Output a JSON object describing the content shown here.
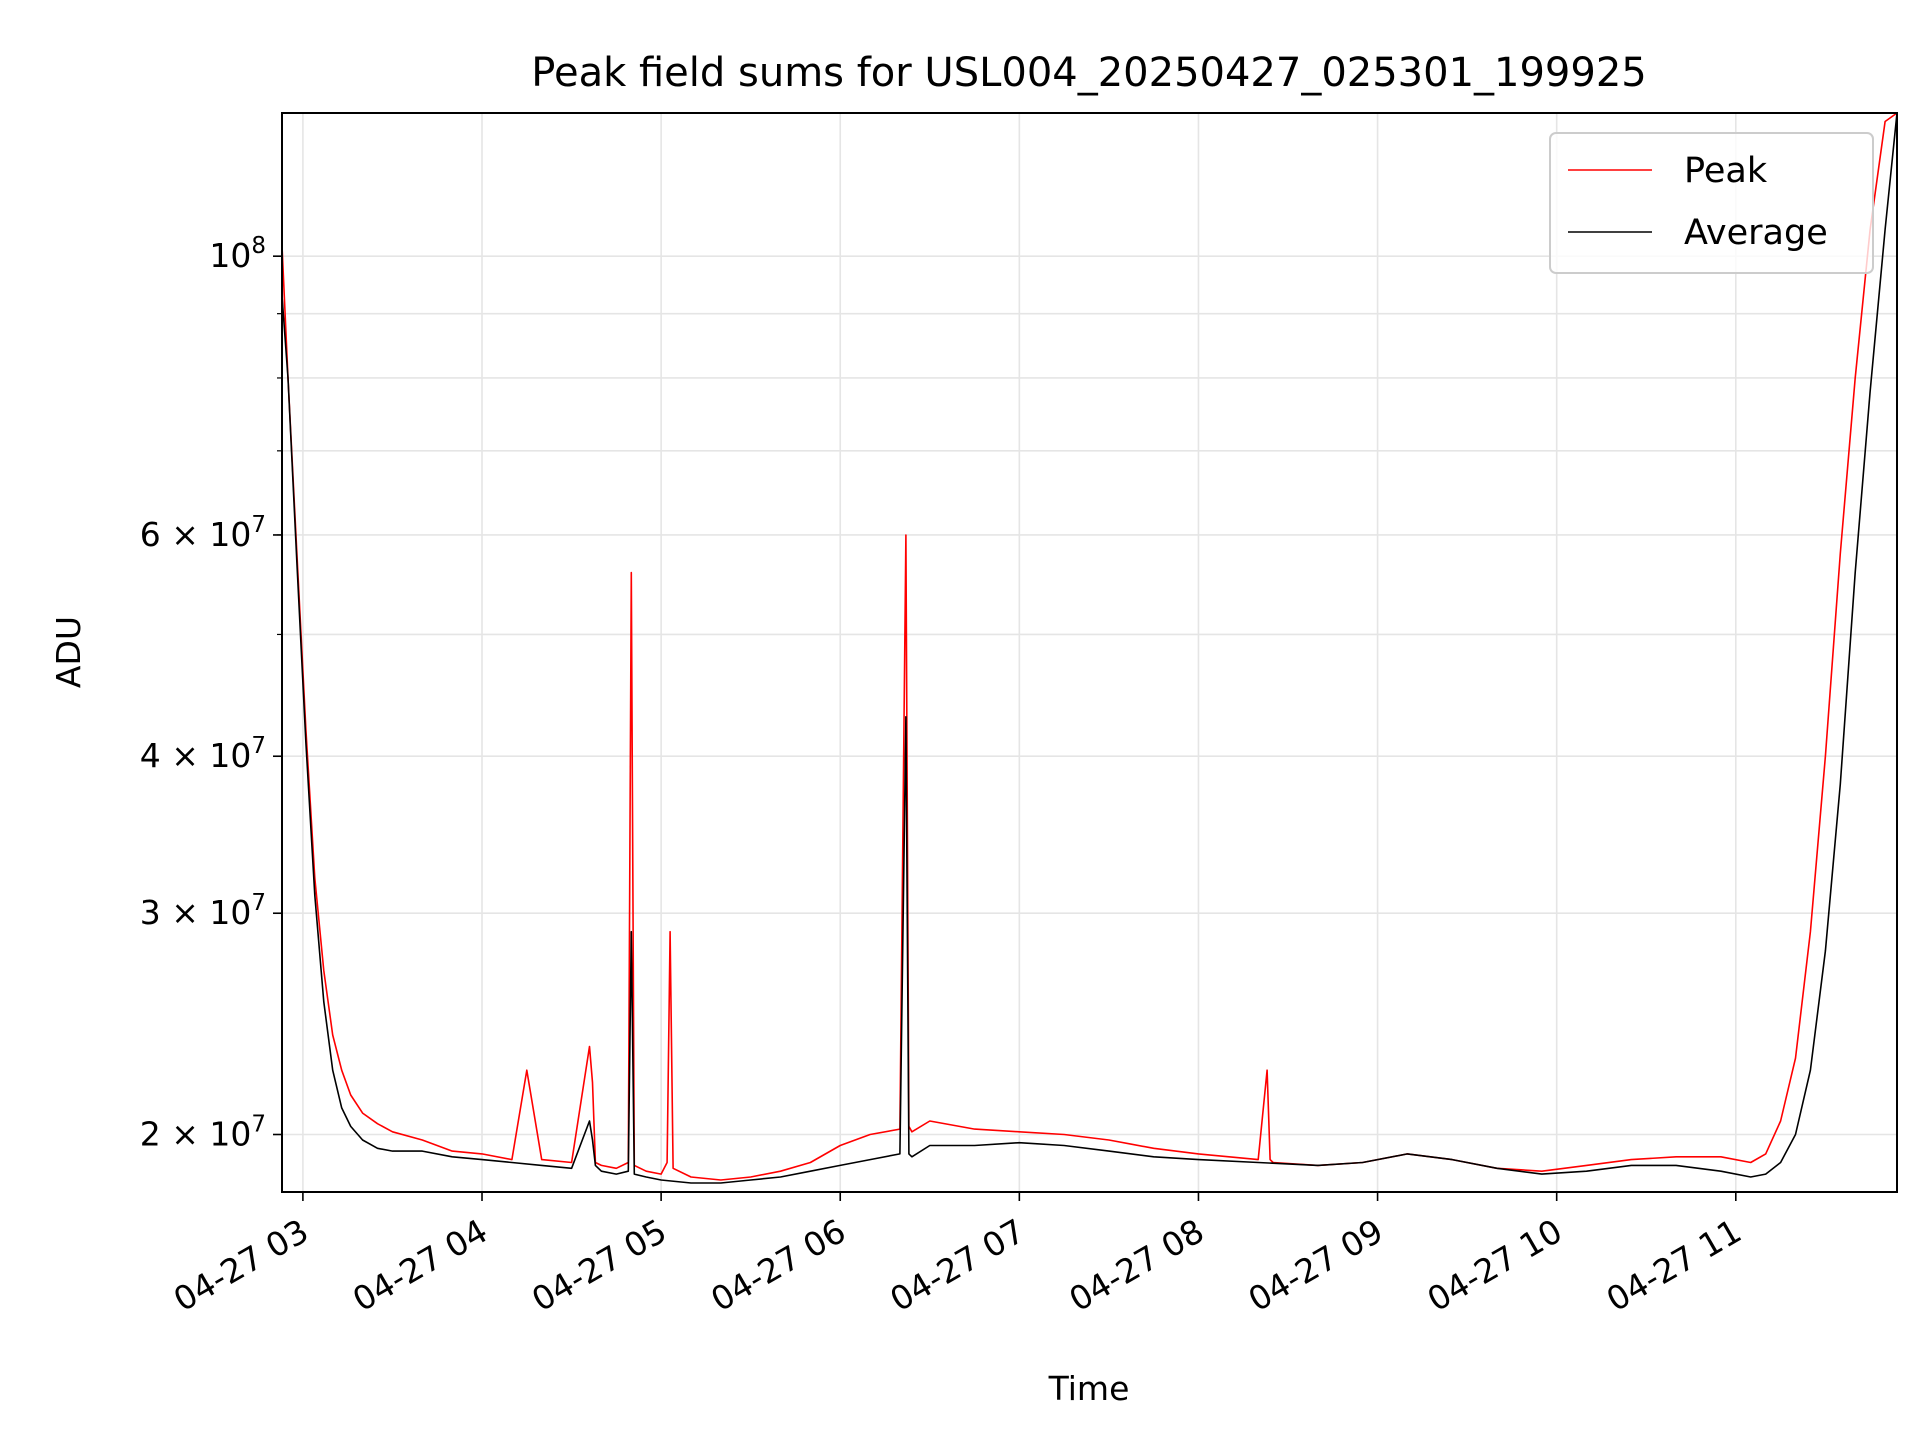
{
  "chart_data": {
    "type": "line",
    "title": "Peak field sums for USL004_20250427_025301_199925",
    "xlabel": "Time",
    "ylabel": "ADU",
    "yscale": "log",
    "ylim": [
      18000000,
      130000000
    ],
    "xlim": [
      "2025-04-27 02:53",
      "2025-04-27 11:54"
    ],
    "grid": true,
    "legend": {
      "placement": "top-right",
      "entries": [
        "Peak",
        "Average"
      ]
    },
    "x_ticks": [
      "04-27 03",
      "04-27 04",
      "04-27 05",
      "04-27 06",
      "04-27 07",
      "04-27 08",
      "04-27 09",
      "04-27 10",
      "04-27 11"
    ],
    "y_ticks": [
      {
        "value": 20000000,
        "base": "2 × 10",
        "exp": "7"
      },
      {
        "value": 30000000,
        "base": "3 × 10",
        "exp": "7"
      },
      {
        "value": 40000000,
        "base": "4 × 10",
        "exp": "7"
      },
      {
        "value": 60000000,
        "base": "6 × 10",
        "exp": "7"
      },
      {
        "value": 100000000,
        "base": "10",
        "exp": "8"
      }
    ],
    "series": [
      {
        "name": "Peak",
        "color": "#ff0000",
        "x": [
          "2025-04-27 02:53",
          "2025-04-27 02:55",
          "2025-04-27 02:58",
          "2025-04-27 03:01",
          "2025-04-27 03:04",
          "2025-04-27 03:07",
          "2025-04-27 03:10",
          "2025-04-27 03:13",
          "2025-04-27 03:16",
          "2025-04-27 03:20",
          "2025-04-27 03:25",
          "2025-04-27 03:30",
          "2025-04-27 03:40",
          "2025-04-27 03:50",
          "2025-04-27 04:00",
          "2025-04-27 04:10",
          "2025-04-27 04:15",
          "2025-04-27 04:20",
          "2025-04-27 04:30",
          "2025-04-27 04:36",
          "2025-04-27 04:37",
          "2025-04-27 04:38",
          "2025-04-27 04:40",
          "2025-04-27 04:45",
          "2025-04-27 04:49",
          "2025-04-27 04:50",
          "2025-04-27 04:51",
          "2025-04-27 04:55",
          "2025-04-27 05:00",
          "2025-04-27 05:02",
          "2025-04-27 05:03",
          "2025-04-27 05:04",
          "2025-04-27 05:10",
          "2025-04-27 05:20",
          "2025-04-27 05:30",
          "2025-04-27 05:40",
          "2025-04-27 05:50",
          "2025-04-27 06:00",
          "2025-04-27 06:10",
          "2025-04-27 06:20",
          "2025-04-27 06:22",
          "2025-04-27 06:23",
          "2025-04-27 06:24",
          "2025-04-27 06:30",
          "2025-04-27 06:45",
          "2025-04-27 07:00",
          "2025-04-27 07:15",
          "2025-04-27 07:30",
          "2025-04-27 07:45",
          "2025-04-27 08:00",
          "2025-04-27 08:20",
          "2025-04-27 08:23",
          "2025-04-27 08:24",
          "2025-04-27 08:25",
          "2025-04-27 08:40",
          "2025-04-27 08:55",
          "2025-04-27 09:10",
          "2025-04-27 09:25",
          "2025-04-27 09:40",
          "2025-04-27 09:55",
          "2025-04-27 10:10",
          "2025-04-27 10:25",
          "2025-04-27 10:40",
          "2025-04-27 10:55",
          "2025-04-27 11:05",
          "2025-04-27 11:10",
          "2025-04-27 11:15",
          "2025-04-27 11:20",
          "2025-04-27 11:25",
          "2025-04-27 11:30",
          "2025-04-27 11:35",
          "2025-04-27 11:40",
          "2025-04-27 11:45",
          "2025-04-27 11:50",
          "2025-04-27 11:54"
        ],
        "values": [
          102000000,
          80000000,
          58000000,
          42000000,
          32000000,
          27000000,
          24000000,
          22500000,
          21500000,
          20800000,
          20400000,
          20100000,
          19800000,
          19400000,
          19300000,
          19100000,
          22500000,
          19100000,
          19000000,
          23500000,
          22000000,
          19000000,
          18900000,
          18800000,
          19000000,
          56000000,
          18900000,
          18700000,
          18600000,
          19000000,
          29000000,
          18800000,
          18500000,
          18400000,
          18500000,
          18700000,
          19000000,
          19600000,
          20000000,
          20200000,
          60000000,
          20300000,
          20100000,
          20500000,
          20200000,
          20100000,
          20000000,
          19800000,
          19500000,
          19300000,
          19100000,
          22500000,
          19100000,
          19000000,
          18900000,
          19000000,
          19300000,
          19100000,
          18800000,
          18700000,
          18900000,
          19100000,
          19200000,
          19200000,
          19000000,
          19300000,
          20500000,
          23000000,
          29000000,
          40000000,
          58000000,
          80000000,
          105000000,
          128000000,
          130000000
        ]
      },
      {
        "name": "Average",
        "color": "#000000",
        "x": [
          "2025-04-27 02:53",
          "2025-04-27 02:55",
          "2025-04-27 02:58",
          "2025-04-27 03:01",
          "2025-04-27 03:04",
          "2025-04-27 03:07",
          "2025-04-27 03:10",
          "2025-04-27 03:13",
          "2025-04-27 03:16",
          "2025-04-27 03:20",
          "2025-04-27 03:25",
          "2025-04-27 03:30",
          "2025-04-27 03:40",
          "2025-04-27 03:50",
          "2025-04-27 04:00",
          "2025-04-27 04:10",
          "2025-04-27 04:20",
          "2025-04-27 04:30",
          "2025-04-27 04:36",
          "2025-04-27 04:37",
          "2025-04-27 04:38",
          "2025-04-27 04:40",
          "2025-04-27 04:45",
          "2025-04-27 04:49",
          "2025-04-27 04:50",
          "2025-04-27 04:51",
          "2025-04-27 04:55",
          "2025-04-27 05:00",
          "2025-04-27 05:10",
          "2025-04-27 05:20",
          "2025-04-27 05:30",
          "2025-04-27 05:40",
          "2025-04-27 05:50",
          "2025-04-27 06:00",
          "2025-04-27 06:10",
          "2025-04-27 06:20",
          "2025-04-27 06:22",
          "2025-04-27 06:23",
          "2025-04-27 06:24",
          "2025-04-27 06:30",
          "2025-04-27 06:45",
          "2025-04-27 07:00",
          "2025-04-27 07:15",
          "2025-04-27 07:30",
          "2025-04-27 07:45",
          "2025-04-27 08:00",
          "2025-04-27 08:20",
          "2025-04-27 08:40",
          "2025-04-27 08:55",
          "2025-04-27 09:10",
          "2025-04-27 09:25",
          "2025-04-27 09:40",
          "2025-04-27 09:55",
          "2025-04-27 10:10",
          "2025-04-27 10:25",
          "2025-04-27 10:40",
          "2025-04-27 10:55",
          "2025-04-27 11:05",
          "2025-04-27 11:10",
          "2025-04-27 11:15",
          "2025-04-27 11:20",
          "2025-04-27 11:25",
          "2025-04-27 11:30",
          "2025-04-27 11:35",
          "2025-04-27 11:40",
          "2025-04-27 11:45",
          "2025-04-27 11:50",
          "2025-04-27 11:54"
        ],
        "values": [
          93000000,
          80000000,
          57000000,
          41000000,
          31000000,
          25500000,
          22500000,
          21000000,
          20300000,
          19800000,
          19500000,
          19400000,
          19400000,
          19200000,
          19100000,
          19000000,
          18900000,
          18800000,
          20500000,
          19800000,
          18900000,
          18700000,
          18600000,
          18700000,
          29000000,
          18600000,
          18500000,
          18400000,
          18300000,
          18300000,
          18400000,
          18500000,
          18700000,
          18900000,
          19100000,
          19300000,
          43000000,
          19300000,
          19200000,
          19600000,
          19600000,
          19700000,
          19600000,
          19400000,
          19200000,
          19100000,
          19000000,
          18900000,
          19000000,
          19300000,
          19100000,
          18800000,
          18600000,
          18700000,
          18900000,
          18900000,
          18700000,
          18500000,
          18600000,
          19000000,
          20000000,
          22500000,
          28000000,
          38000000,
          56000000,
          78000000,
          105000000,
          130000000
        ]
      }
    ]
  }
}
